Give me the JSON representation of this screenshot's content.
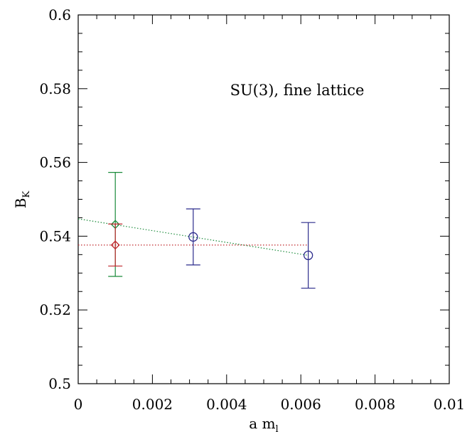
{
  "chart_data": {
    "type": "scatter",
    "title": "",
    "annotation": "SU(3), fine lattice",
    "xlabel": "a m_l",
    "xlabel_main": "a m",
    "xlabel_sub": "l",
    "ylabel": "B_K",
    "ylabel_main": "B",
    "ylabel_sub": "K",
    "xlim": [
      0,
      0.01
    ],
    "ylim": [
      0.5,
      0.6
    ],
    "xticks": [
      0,
      0.002,
      0.004,
      0.006,
      0.008,
      0.01
    ],
    "xtick_labels": [
      "0",
      "0.002",
      "0.004",
      "0.006",
      "0.008",
      "0.01"
    ],
    "yticks": [
      0.5,
      0.52,
      0.54,
      0.56,
      0.58,
      0.6
    ],
    "ytick_labels": [
      "0.5",
      "0.52",
      "0.54",
      "0.56",
      "0.58",
      "0.6"
    ],
    "grid": false,
    "series": [
      {
        "marker": "circle",
        "color": "#2b2b8c",
        "points": [
          {
            "x": 0.0031,
            "y": 0.5398,
            "err_low": 0.5322,
            "err_high": 0.5474
          },
          {
            "x": 0.0062,
            "y": 0.5348,
            "err_low": 0.5259,
            "err_high": 0.5437
          }
        ]
      },
      {
        "marker": "diamond",
        "color": "#1a8a3a",
        "points": [
          {
            "x": 0.001,
            "y": 0.5432,
            "err_low": 0.5291,
            "err_high": 0.5573
          }
        ]
      },
      {
        "marker": "diamond",
        "color": "#c0282d",
        "points": [
          {
            "x": 0.001,
            "y": 0.5376,
            "err_low": 0.5319,
            "err_high": 0.5433
          }
        ]
      }
    ],
    "fit_lines": [
      {
        "style": "dotted",
        "color": "#1a8a3a",
        "x": [
          0,
          0.0062
        ],
        "y": [
          0.5447,
          0.5348
        ]
      },
      {
        "style": "dotted",
        "color": "#c0282d",
        "x": [
          0,
          0.0062
        ],
        "y": [
          0.5376,
          0.5376
        ]
      }
    ]
  }
}
